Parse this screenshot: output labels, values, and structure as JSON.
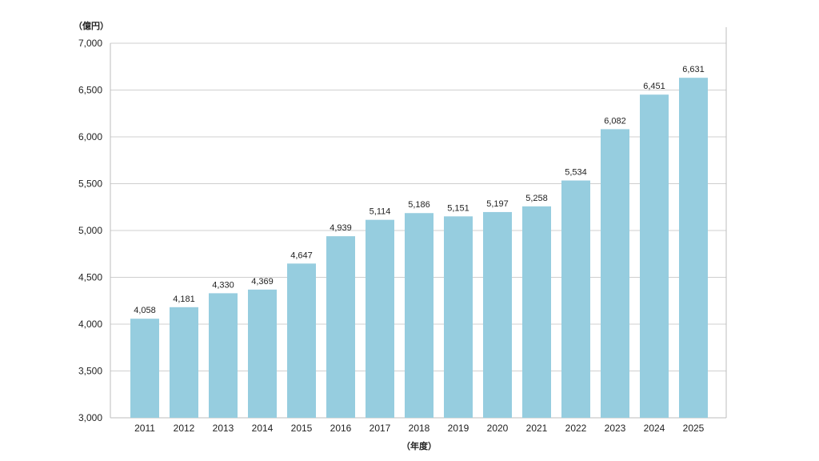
{
  "chart_data": {
    "type": "bar",
    "title": "",
    "ylabel": "（億円）",
    "xlabel": "（年度）",
    "categories": [
      "2011",
      "2012",
      "2013",
      "2014",
      "2015",
      "2016",
      "2017",
      "2018",
      "2019",
      "2020",
      "2021",
      "2022",
      "2023",
      "2024",
      "2025"
    ],
    "series": [
      {
        "values": [
          4058,
          4181,
          4330,
          4369,
          4647,
          4939,
          5114,
          5186,
          5151,
          5197,
          5258,
          5534,
          6082,
          6451,
          6631
        ],
        "value_labels": [
          "4,058",
          "4,181",
          "4,330",
          "4,369",
          "4,647",
          "4,939",
          "5,114",
          "5,186",
          "5,151",
          "5,197",
          "5,258",
          "5,534",
          "6,082",
          "6,451",
          "6,631"
        ]
      }
    ],
    "ylim": [
      3000,
      7000
    ],
    "yticks": [
      3000,
      3500,
      4000,
      4500,
      5000,
      5500,
      6000,
      6500,
      7000
    ],
    "ytick_labels": [
      "3,000",
      "3,500",
      "4,000",
      "4,500",
      "5,000",
      "5,500",
      "6,000",
      "6,500",
      "7,000"
    ],
    "grid": true,
    "colors": {
      "bar": "#96cddf",
      "grid": "#cfcfcf",
      "text": "#222222"
    }
  }
}
